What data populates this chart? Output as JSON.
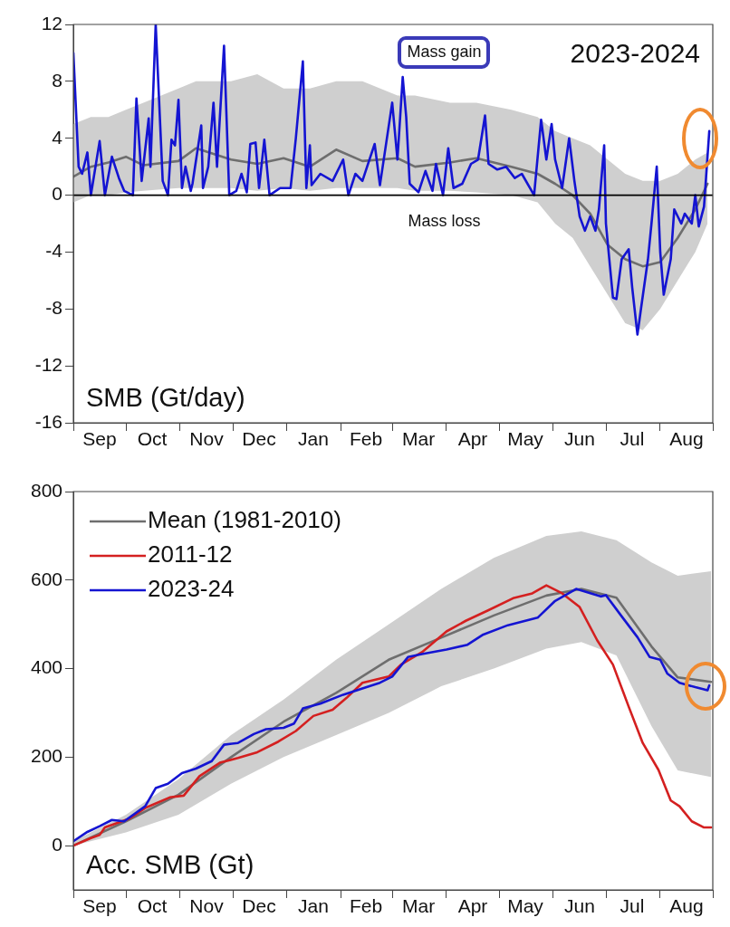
{
  "chart_data": [
    {
      "type": "line",
      "title": "2023-2024",
      "ylabel": "SMB (Gt/day)",
      "annotations": [
        "Mass gain",
        "Mass loss"
      ],
      "xlim": [
        "2023-09-01",
        "2024-08-31"
      ],
      "xticks": [
        {
          "value": "2023-09-01",
          "label": null
        },
        {
          "value": "2023-09-16",
          "label": "Sep"
        },
        {
          "value": "2023-10-01",
          "label": null
        },
        {
          "value": "2023-10-16",
          "label": "Oct"
        },
        {
          "value": "2023-11-01",
          "label": null
        },
        {
          "value": "2023-11-16",
          "label": "Nov"
        },
        {
          "value": "2023-12-01",
          "label": null
        },
        {
          "value": "2023-12-16",
          "label": "Dec"
        },
        {
          "value": "2024-01-01",
          "label": null
        },
        {
          "value": "2024-01-16",
          "label": "Jan"
        },
        {
          "value": "2024-02-01",
          "label": null
        },
        {
          "value": "2024-02-15",
          "label": "Feb"
        },
        {
          "value": "2024-03-01",
          "label": null
        },
        {
          "value": "2024-03-16",
          "label": "Mar"
        },
        {
          "value": "2024-04-01",
          "label": null
        },
        {
          "value": "2024-04-16",
          "label": "Apr"
        },
        {
          "value": "2024-05-01",
          "label": null
        },
        {
          "value": "2024-05-16",
          "label": "May"
        },
        {
          "value": "2024-06-01",
          "label": null
        },
        {
          "value": "2024-06-16",
          "label": "Jun"
        },
        {
          "value": "2024-07-01",
          "label": null
        },
        {
          "value": "2024-07-16",
          "label": "Jul"
        },
        {
          "value": "2024-08-01",
          "label": null
        },
        {
          "value": "2024-08-16",
          "label": "Aug"
        },
        {
          "value": "2024-08-31",
          "label": null
        }
      ],
      "ylim": [
        -16,
        12
      ],
      "yticks": [
        -16,
        -12,
        -8,
        -4,
        0,
        4,
        8,
        12
      ],
      "ref_lines": [
        {
          "axis": "y",
          "value": 0,
          "color": "#000000"
        }
      ],
      "series": [
        {
          "color": "#6e6e6e",
          "x": [
            "2023-09-01",
            "2023-09-11",
            "2023-09-21",
            "2023-10-01",
            "2023-10-11",
            "2023-10-31",
            "2023-11-10",
            "2023-11-30",
            "2023-12-15",
            "2023-12-30",
            "2024-01-14",
            "2024-01-29",
            "2024-02-13",
            "2024-03-04",
            "2024-03-14",
            "2024-04-03",
            "2024-04-18",
            "2024-05-08",
            "2024-05-23",
            "2024-06-02",
            "2024-06-12",
            "2024-06-22",
            "2024-07-02",
            "2024-07-12",
            "2024-07-22",
            "2024-08-01",
            "2024-08-11",
            "2024-08-21",
            "2024-08-28"
          ],
          "values": [
            1.3,
            2,
            2.3,
            2.7,
            2.1,
            2.4,
            3.3,
            2.5,
            2.2,
            2.6,
            2,
            3.2,
            2.4,
            2.6,
            2,
            2.3,
            2.6,
            2,
            1.5,
            0.8,
            0,
            -1.3,
            -3.5,
            -4.5,
            -5,
            -4.7,
            -3,
            -1,
            0.8
          ],
          "lower": [
            -0.5,
            0,
            0,
            0.2,
            0.3,
            0.5,
            0.5,
            0.5,
            0.3,
            0.5,
            0.3,
            0.5,
            0.5,
            0.5,
            0.3,
            0.3,
            0.2,
            0,
            -0.5,
            -2,
            -3,
            -5,
            -7,
            -9,
            -9.5,
            -8,
            -6,
            -4,
            -2
          ],
          "upper": [
            5,
            5.5,
            5.5,
            6,
            6.5,
            7.5,
            8,
            8,
            8.5,
            7.5,
            7.5,
            8,
            8,
            7,
            7,
            6.5,
            6.5,
            6,
            5.5,
            4.5,
            4,
            3.5,
            2.5,
            1.5,
            1,
            1,
            1.5,
            2.5,
            3
          ]
        },
        {
          "color": "#1414d2",
          "x": [
            "2023-09-01",
            "2023-09-04",
            "2023-09-06",
            "2023-09-09",
            "2023-09-11",
            "2023-09-16",
            "2023-09-19",
            "2023-09-23",
            "2023-09-27",
            "2023-09-30",
            "2023-10-05",
            "2023-10-07",
            "2023-10-10",
            "2023-10-14",
            "2023-10-15",
            "2023-10-18",
            "2023-10-22",
            "2023-10-25",
            "2023-10-27",
            "2023-10-29",
            "2023-10-31",
            "2023-11-02",
            "2023-11-04",
            "2023-11-07",
            "2023-11-08",
            "2023-11-13",
            "2023-11-14",
            "2023-11-17",
            "2023-11-20",
            "2023-11-22",
            "2023-11-26",
            "2023-11-29",
            "2023-12-03",
            "2023-12-06",
            "2023-12-09",
            "2023-12-11",
            "2023-12-14",
            "2023-12-16",
            "2023-12-19",
            "2023-12-22",
            "2023-12-28",
            "2024-01-03",
            "2024-01-06",
            "2024-01-10",
            "2024-01-12",
            "2024-01-14",
            "2024-01-15",
            "2024-01-20",
            "2024-01-27",
            "2024-02-02",
            "2024-02-05",
            "2024-02-09",
            "2024-02-13",
            "2024-02-17",
            "2024-02-20",
            "2024-02-23",
            "2024-03-01",
            "2024-03-04",
            "2024-03-07",
            "2024-03-09",
            "2024-03-11",
            "2024-03-16",
            "2024-03-20",
            "2024-03-24",
            "2024-03-26",
            "2024-03-30",
            "2024-04-02",
            "2024-04-05",
            "2024-04-10",
            "2024-04-15",
            "2024-04-19",
            "2024-04-23",
            "2024-04-25",
            "2024-04-30",
            "2024-05-05",
            "2024-05-10",
            "2024-05-14",
            "2024-05-21",
            "2024-05-25",
            "2024-05-28",
            "2024-05-31",
            "2024-06-02",
            "2024-06-06",
            "2024-06-10",
            "2024-06-13",
            "2024-06-16",
            "2024-06-19",
            "2024-06-22",
            "2024-06-25",
            "2024-06-27",
            "2024-06-30",
            "2024-07-01",
            "2024-07-05",
            "2024-07-07",
            "2024-07-10",
            "2024-07-14",
            "2024-07-16",
            "2024-07-19",
            "2024-07-21",
            "2024-07-25",
            "2024-07-27",
            "2024-07-30",
            "2024-08-01",
            "2024-08-03",
            "2024-08-07",
            "2024-08-09",
            "2024-08-13",
            "2024-08-15",
            "2024-08-19",
            "2024-08-21",
            "2024-08-23",
            "2024-08-26",
            "2024-08-29"
          ],
          "values": [
            10,
            2,
            1.5,
            3,
            0,
            3.8,
            0,
            2.7,
            1.2,
            0.3,
            0,
            6.8,
            1,
            5.4,
            2,
            12,
            1,
            0,
            3.9,
            3.5,
            6.7,
            0.5,
            2,
            0.3,
            0.8,
            4.9,
            0.5,
            2,
            6.5,
            2,
            10.5,
            0,
            0.3,
            1.5,
            0.2,
            3.6,
            3.7,
            0.5,
            3.9,
            0,
            0.5,
            0.5,
            4,
            9.4,
            0.5,
            3.5,
            0.7,
            1.5,
            1,
            2.5,
            0,
            1.5,
            1,
            2.5,
            3.6,
            0.7,
            6.5,
            2.5,
            8.3,
            5.5,
            0.8,
            0.2,
            1.7,
            0.3,
            2.2,
            0,
            3.3,
            0.5,
            0.8,
            2.2,
            2.5,
            5.6,
            2.2,
            1.8,
            2,
            1.2,
            1.5,
            0,
            5.3,
            2.5,
            5,
            2.5,
            0.5,
            4,
            1,
            -1.5,
            -2.5,
            -1.5,
            -2.5,
            -1,
            3.5,
            -2,
            -7.2,
            -7.3,
            -4.5,
            -3.8,
            -6.5,
            -9.8,
            -8,
            -4.5,
            -2,
            2,
            -4,
            -7,
            -4.5,
            -1,
            -2,
            -1.3,
            -2,
            0,
            -2.2,
            -0.8,
            4.5
          ]
        }
      ]
    },
    {
      "type": "line",
      "ylabel": "Acc. SMB (Gt)",
      "legend": "top left",
      "xlim": [
        "2023-09-01",
        "2024-08-31"
      ],
      "xticks": [
        {
          "value": "2023-09-01",
          "label": null
        },
        {
          "value": "2023-09-16",
          "label": "Sep"
        },
        {
          "value": "2023-10-01",
          "label": null
        },
        {
          "value": "2023-10-16",
          "label": "Oct"
        },
        {
          "value": "2023-11-01",
          "label": null
        },
        {
          "value": "2023-11-16",
          "label": "Nov"
        },
        {
          "value": "2023-12-01",
          "label": null
        },
        {
          "value": "2023-12-16",
          "label": "Dec"
        },
        {
          "value": "2024-01-01",
          "label": null
        },
        {
          "value": "2024-01-16",
          "label": "Jan"
        },
        {
          "value": "2024-02-01",
          "label": null
        },
        {
          "value": "2024-02-15",
          "label": "Feb"
        },
        {
          "value": "2024-03-01",
          "label": null
        },
        {
          "value": "2024-03-16",
          "label": "Mar"
        },
        {
          "value": "2024-04-01",
          "label": null
        },
        {
          "value": "2024-04-16",
          "label": "Apr"
        },
        {
          "value": "2024-05-01",
          "label": null
        },
        {
          "value": "2024-05-16",
          "label": "May"
        },
        {
          "value": "2024-06-01",
          "label": null
        },
        {
          "value": "2024-06-16",
          "label": "Jun"
        },
        {
          "value": "2024-07-01",
          "label": null
        },
        {
          "value": "2024-07-16",
          "label": "Jul"
        },
        {
          "value": "2024-08-01",
          "label": null
        },
        {
          "value": "2024-08-16",
          "label": "Aug"
        },
        {
          "value": "2024-08-31",
          "label": null
        }
      ],
      "ylim": [
        -100,
        800
      ],
      "yticks": [
        0,
        200,
        400,
        600,
        800
      ],
      "series": [
        {
          "name": "Mean (1981-2010)",
          "color": "#6e6e6e",
          "x": [
            "2023-09-01",
            "2023-10-01",
            "2023-10-31",
            "2023-11-30",
            "2023-12-30",
            "2024-01-29",
            "2024-02-28",
            "2024-03-29",
            "2024-04-28",
            "2024-05-28",
            "2024-06-17",
            "2024-07-07",
            "2024-07-27",
            "2024-08-11",
            "2024-08-30"
          ],
          "values": [
            0,
            55,
            115,
            200,
            280,
            345,
            420,
            470,
            520,
            565,
            580,
            560,
            450,
            380,
            370
          ],
          "lower": [
            0,
            30,
            70,
            140,
            200,
            250,
            300,
            360,
            400,
            445,
            460,
            430,
            270,
            170,
            155
          ],
          "upper": [
            10,
            70,
            150,
            250,
            330,
            420,
            500,
            580,
            650,
            700,
            710,
            690,
            640,
            610,
            620
          ]
        },
        {
          "name": "2011-12",
          "color": "#d42020",
          "x": [
            "2023-09-01",
            "2023-09-11",
            "2023-09-16",
            "2023-09-19",
            "2023-10-03",
            "2023-10-12",
            "2023-10-26",
            "2023-11-03",
            "2023-11-12",
            "2023-11-24",
            "2023-12-04",
            "2023-12-15",
            "2023-12-27",
            "2024-01-06",
            "2024-01-16",
            "2024-01-27",
            "2024-02-04",
            "2024-02-13",
            "2024-02-28",
            "2024-03-06",
            "2024-03-18",
            "2024-04-01",
            "2024-04-12",
            "2024-04-25",
            "2024-05-09",
            "2024-05-20",
            "2024-05-28",
            "2024-06-06",
            "2024-06-16",
            "2024-06-26",
            "2024-07-05",
            "2024-07-14",
            "2024-07-22",
            "2024-07-31",
            "2024-08-07",
            "2024-08-12",
            "2024-08-19",
            "2024-08-26",
            "2024-08-30"
          ],
          "values": [
            0,
            17,
            24,
            41,
            61,
            85,
            109,
            113,
            157,
            188,
            198,
            211,
            235,
            259,
            293,
            307,
            334,
            368,
            382,
            409,
            437,
            484,
            508,
            532,
            559,
            570,
            588,
            570,
            539,
            464,
            409,
            314,
            232,
            171,
            102,
            89,
            55,
            41,
            41
          ]
        },
        {
          "name": "2023-24",
          "color": "#1414d2",
          "x": [
            "2023-09-01",
            "2023-09-09",
            "2023-09-16",
            "2023-09-23",
            "2023-09-30",
            "2023-10-12",
            "2023-10-18",
            "2023-10-25",
            "2023-11-02",
            "2023-11-10",
            "2023-11-19",
            "2023-11-26",
            "2023-12-04",
            "2023-12-13",
            "2023-12-20",
            "2023-12-30",
            "2024-01-05",
            "2024-01-10",
            "2024-01-20",
            "2024-02-02",
            "2024-02-13",
            "2024-02-23",
            "2024-03-01",
            "2024-03-10",
            "2024-03-18",
            "2024-04-01",
            "2024-04-13",
            "2024-04-22",
            "2024-05-06",
            "2024-05-23",
            "2024-06-02",
            "2024-06-14",
            "2024-06-28",
            "2024-07-01",
            "2024-07-10",
            "2024-07-19",
            "2024-07-26",
            "2024-08-01",
            "2024-08-05",
            "2024-08-12",
            "2024-08-21",
            "2024-08-28",
            "2024-08-29"
          ],
          "values": [
            10,
            31,
            44,
            58,
            55,
            89,
            130,
            140,
            164,
            174,
            191,
            228,
            232,
            252,
            263,
            266,
            276,
            310,
            321,
            341,
            355,
            368,
            382,
            426,
            433,
            443,
            454,
            477,
            498,
            515,
            553,
            580,
            563,
            566,
            518,
            471,
            426,
            420,
            389,
            368,
            358,
            351,
            362
          ]
        }
      ]
    }
  ]
}
